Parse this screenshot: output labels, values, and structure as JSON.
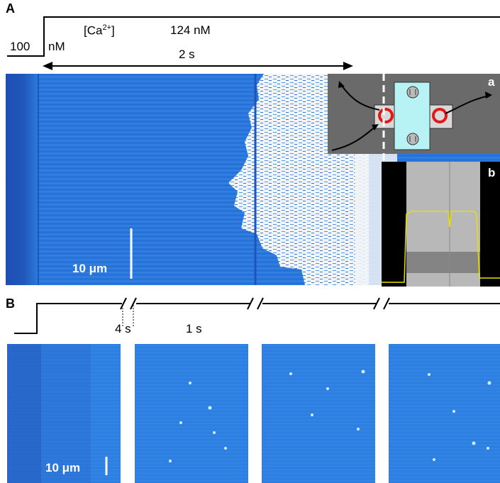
{
  "figure": {
    "panel_a": {
      "letter": "A",
      "baseline_value": "100",
      "unit": "nM",
      "species_prefix": "[Ca",
      "species_charge": "2+",
      "species_suffix": "]",
      "step_value": "124 nM",
      "duration": "2 s",
      "scale_bar": "10 μm",
      "inset_a_letter": "a",
      "inset_b_letter": "b"
    },
    "panel_b": {
      "letter": "B",
      "gap_label": "4 s",
      "interval_label": "1 s",
      "scale_bar": "10 μm"
    }
  },
  "colors": {
    "cell_blue": "#2a78dd",
    "cell_blue_dark": "#1c4fb0",
    "saturated": "#f2f4f8",
    "chamber_gray": "#6a6a6a",
    "cover_cyan": "#b7f2f4",
    "trace_yellow": "#e8e000"
  }
}
